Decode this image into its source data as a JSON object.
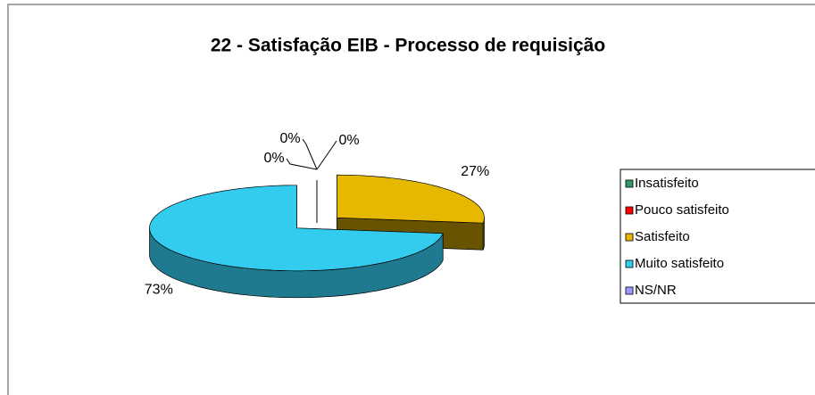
{
  "chart_data": {
    "type": "pie3d",
    "title": "22 - Satisfação EIB - Processo de requisição",
    "categories": [
      "Insatisfeito",
      "Pouco satisfeito",
      "Satisfeito",
      "Muito satisfeito",
      "NS/NR"
    ],
    "values": [
      0,
      0,
      27,
      73,
      0
    ],
    "value_labels": [
      "0%",
      "0%",
      "27%",
      "73%",
      "0%"
    ],
    "colors": [
      "#339966",
      "#ff0000",
      "#e6b800",
      "#33ccee",
      "#9999ff"
    ],
    "legend": "right"
  }
}
